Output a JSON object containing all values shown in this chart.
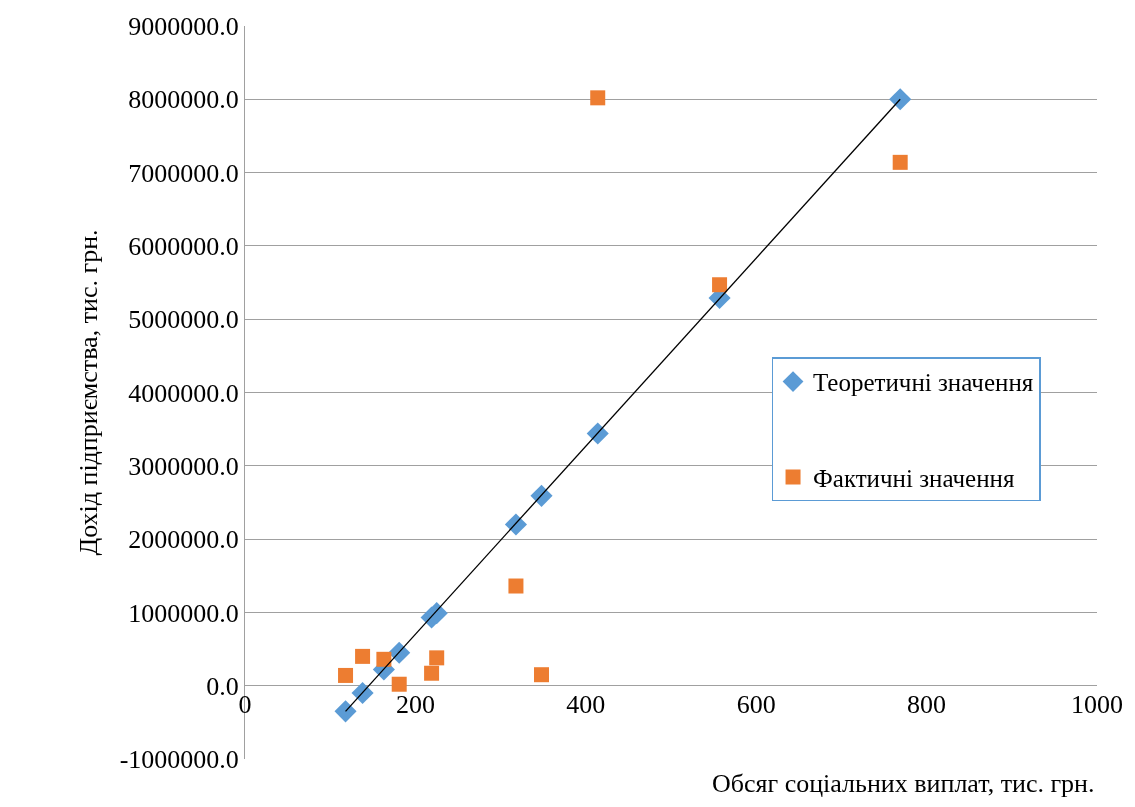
{
  "chart_data": {
    "type": "scatter",
    "xlabel": "Обсяг соціальних виплат, тис. грн.",
    "ylabel": "Дохід підприємства, тис. грн.",
    "x": [
      118,
      138,
      163,
      181,
      219,
      225,
      318,
      348,
      414,
      557,
      769
    ],
    "series": [
      {
        "name": "Теоретичні значення",
        "color": "#5b9bd5",
        "marker": "diamond",
        "values": [
          -350000,
          -100000,
          220000,
          450000,
          930000,
          990000,
          2200000,
          2590000,
          3440000,
          5290000,
          8000000
        ]
      },
      {
        "name": "Фактичні значення",
        "color": "#ed7d31",
        "marker": "square",
        "values": [
          140000,
          400000,
          360000,
          20000,
          170000,
          380000,
          1360000,
          150000,
          8020000,
          5470000,
          7140000
        ]
      },
      {
        "type": "line",
        "color": "#000000",
        "marker": "none",
        "x": [
          118,
          769
        ],
        "values": [
          -350000,
          8000000
        ]
      }
    ],
    "xlim": [
      0,
      1000
    ],
    "xticks": [
      0,
      200,
      400,
      600,
      800,
      1000
    ],
    "ylim": [
      -1000000,
      9000000
    ],
    "yticks": [
      {
        "value": -1000000,
        "label": "-1000000.0"
      },
      {
        "value": 0,
        "label": "0.0"
      },
      {
        "value": 1000000,
        "label": "1000000.0"
      },
      {
        "value": 2000000,
        "label": "2000000.0"
      },
      {
        "value": 3000000,
        "label": "3000000.0"
      },
      {
        "value": 4000000,
        "label": "4000000.0"
      },
      {
        "value": 5000000,
        "label": "5000000.0"
      },
      {
        "value": 6000000,
        "label": "6000000.0"
      },
      {
        "value": 7000000,
        "label": "7000000.0"
      },
      {
        "value": 8000000,
        "label": "8000000.0"
      },
      {
        "value": 9000000,
        "label": "9000000.0"
      }
    ],
    "grid": "y",
    "legend": "right"
  }
}
